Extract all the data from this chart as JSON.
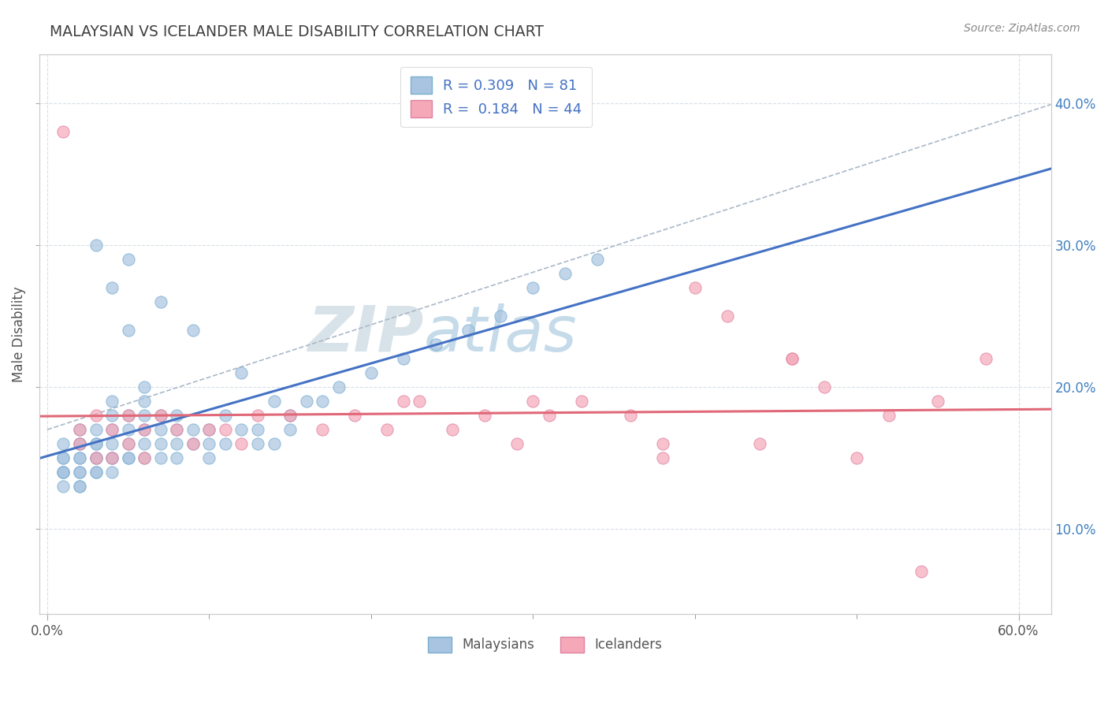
{
  "title": "MALAYSIAN VS ICELANDER MALE DISABILITY CORRELATION CHART",
  "source": "Source: ZipAtlas.com",
  "xlabel_major_ticks": [
    0.0,
    0.6
  ],
  "xlabel_major_labels": [
    "0.0%",
    "60.0%"
  ],
  "xlabel_minor_ticks": [
    0.1,
    0.2,
    0.3,
    0.4,
    0.5
  ],
  "ylabel": "Male Disability",
  "ylabel_ticks": [
    0.1,
    0.2,
    0.3,
    0.4
  ],
  "ylabel_labels": [
    "10.0%",
    "20.0%",
    "30.0%",
    "40.0%"
  ],
  "xlim": [
    -0.005,
    0.62
  ],
  "ylim": [
    0.04,
    0.435
  ],
  "R_malaysian": 0.309,
  "N_malaysian": 81,
  "R_icelander": 0.184,
  "N_icelander": 44,
  "malaysian_color": "#a8c4e0",
  "icelander_color": "#f4a8b8",
  "trend_malaysian_color": "#4472c4",
  "trend_icelander_color": "#e06878",
  "watermark_zip": "ZIP",
  "watermark_atlas": "atlas",
  "background_color": "#ffffff",
  "grid_color": "#d8dfe8",
  "malaysians_x": [
    0.01,
    0.01,
    0.01,
    0.01,
    0.01,
    0.01,
    0.01,
    0.02,
    0.02,
    0.02,
    0.02,
    0.02,
    0.02,
    0.02,
    0.02,
    0.02,
    0.03,
    0.03,
    0.03,
    0.03,
    0.03,
    0.03,
    0.03,
    0.03,
    0.04,
    0.04,
    0.04,
    0.04,
    0.04,
    0.04,
    0.04,
    0.04,
    0.05,
    0.05,
    0.05,
    0.05,
    0.05,
    0.05,
    0.05,
    0.06,
    0.06,
    0.06,
    0.06,
    0.06,
    0.06,
    0.07,
    0.07,
    0.07,
    0.07,
    0.07,
    0.08,
    0.08,
    0.08,
    0.08,
    0.09,
    0.09,
    0.09,
    0.1,
    0.1,
    0.1,
    0.11,
    0.11,
    0.12,
    0.12,
    0.13,
    0.13,
    0.14,
    0.14,
    0.15,
    0.15,
    0.16,
    0.17,
    0.18,
    0.2,
    0.22,
    0.24,
    0.26,
    0.28,
    0.3,
    0.32,
    0.34
  ],
  "malaysians_y": [
    0.13,
    0.14,
    0.14,
    0.14,
    0.15,
    0.15,
    0.16,
    0.13,
    0.13,
    0.14,
    0.14,
    0.15,
    0.15,
    0.16,
    0.16,
    0.17,
    0.14,
    0.14,
    0.15,
    0.15,
    0.16,
    0.16,
    0.17,
    0.3,
    0.14,
    0.15,
    0.15,
    0.16,
    0.17,
    0.18,
    0.19,
    0.27,
    0.15,
    0.15,
    0.16,
    0.17,
    0.18,
    0.24,
    0.29,
    0.15,
    0.16,
    0.17,
    0.18,
    0.19,
    0.2,
    0.15,
    0.16,
    0.17,
    0.18,
    0.26,
    0.15,
    0.16,
    0.17,
    0.18,
    0.16,
    0.17,
    0.24,
    0.15,
    0.16,
    0.17,
    0.16,
    0.18,
    0.17,
    0.21,
    0.16,
    0.17,
    0.16,
    0.19,
    0.17,
    0.18,
    0.19,
    0.19,
    0.2,
    0.21,
    0.22,
    0.23,
    0.24,
    0.25,
    0.27,
    0.28,
    0.29
  ],
  "icelanders_x": [
    0.01,
    0.02,
    0.02,
    0.03,
    0.03,
    0.04,
    0.04,
    0.05,
    0.05,
    0.06,
    0.06,
    0.07,
    0.08,
    0.09,
    0.1,
    0.11,
    0.12,
    0.13,
    0.15,
    0.17,
    0.19,
    0.21,
    0.23,
    0.25,
    0.27,
    0.29,
    0.31,
    0.33,
    0.36,
    0.38,
    0.4,
    0.42,
    0.44,
    0.46,
    0.48,
    0.5,
    0.52,
    0.55,
    0.58,
    0.22,
    0.3,
    0.38,
    0.46,
    0.54
  ],
  "icelanders_y": [
    0.38,
    0.16,
    0.17,
    0.15,
    0.18,
    0.15,
    0.17,
    0.16,
    0.18,
    0.15,
    0.17,
    0.18,
    0.17,
    0.16,
    0.17,
    0.17,
    0.16,
    0.18,
    0.18,
    0.17,
    0.18,
    0.17,
    0.19,
    0.17,
    0.18,
    0.16,
    0.18,
    0.19,
    0.18,
    0.16,
    0.27,
    0.25,
    0.16,
    0.22,
    0.2,
    0.15,
    0.18,
    0.19,
    0.22,
    0.19,
    0.19,
    0.15,
    0.22,
    0.07
  ]
}
